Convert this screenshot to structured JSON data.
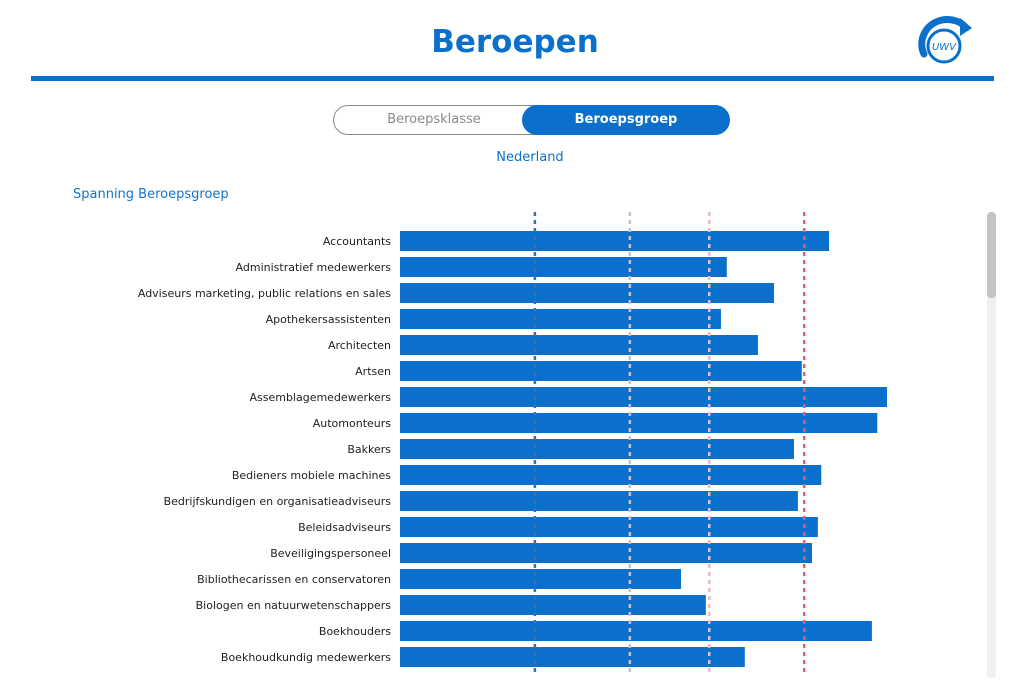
{
  "header": {
    "title": "Beroepen",
    "logo_text": "UWV"
  },
  "toggle": {
    "option_1": "Beroepsklasse",
    "option_2": "Beroepsgroep",
    "selected": "Beroepsgroep"
  },
  "region_label": "Nederland",
  "section_title": "Spanning Beroepsgroep",
  "colors": {
    "accent": "#0a70cc",
    "bar": "#0a70cc",
    "ref_line_1": "#3a6fb8",
    "ref_line_2": "#d4b8cc",
    "ref_line_3": "#f0b9c9",
    "ref_line_4": "#d9607a"
  },
  "chart_data": {
    "type": "bar",
    "orientation": "horizontal",
    "value_scale": "relative (unlabeled axis)",
    "xlim": [
      0,
      100
    ],
    "reference_lines": [
      27.7,
      47.2,
      63.5,
      83.0
    ],
    "categories": [
      "Accountants",
      "Administratief medewerkers",
      "Adviseurs marketing, public relations en sales",
      "Apothekersassistenten",
      "Architecten",
      "Artsen",
      "Assemblagemedewerkers",
      "Automonteurs",
      "Bakkers",
      "Bedieners mobiele machines",
      "Bedrijfskundigen en organisatieadviseurs",
      "Beleidsadviseurs",
      "Beveiligingspersoneel",
      "Bibliothecarissen en conservatoren",
      "Biologen en natuurwetenschappers",
      "Boekhouders",
      "Boekhoudkundig medewerkers"
    ],
    "values": [
      88.1,
      67.1,
      76.8,
      65.9,
      73.5,
      82.5,
      100,
      98.0,
      80.9,
      86.5,
      81.7,
      85.8,
      84.6,
      57.7,
      62.8,
      96.9,
      70.8
    ]
  }
}
